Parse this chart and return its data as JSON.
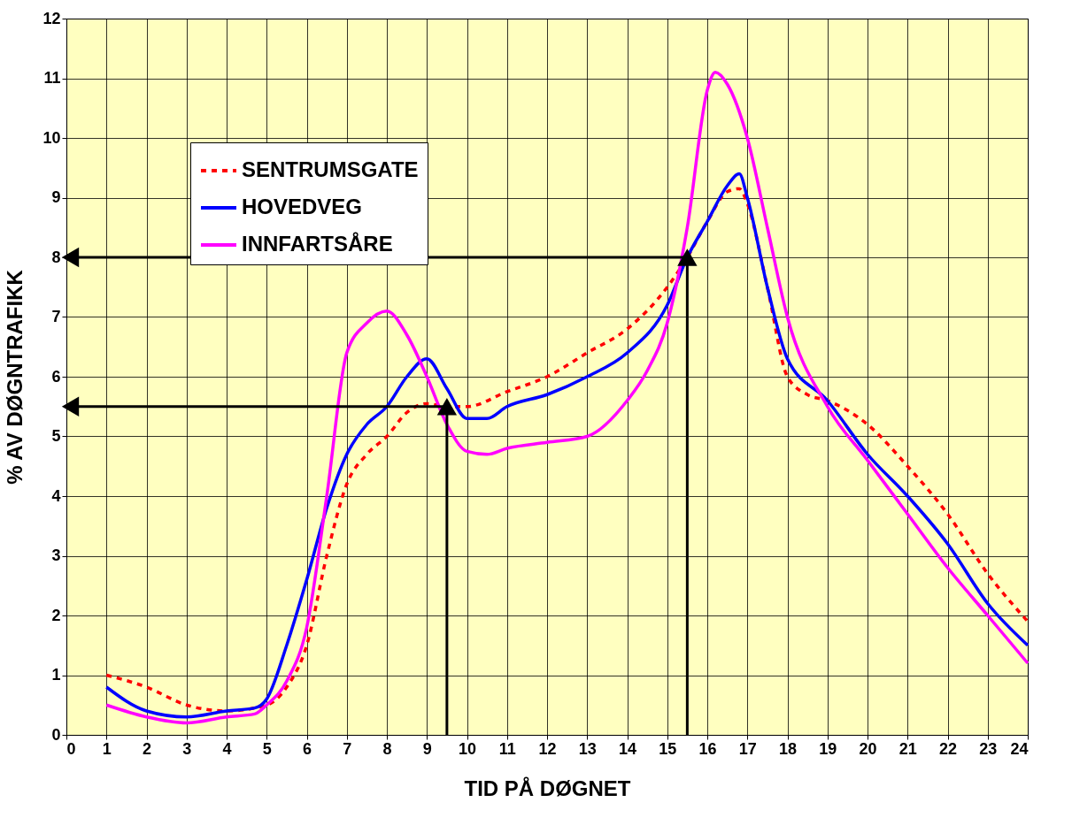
{
  "chart_data": {
    "type": "line",
    "xlabel": "TID PÅ DØGNET",
    "ylabel": "% AV DØGNTRAFIKK",
    "xlim": [
      0,
      24
    ],
    "ylim": [
      0,
      12
    ],
    "xticks": [
      0,
      1,
      2,
      3,
      4,
      5,
      6,
      7,
      8,
      9,
      10,
      11,
      12,
      13,
      14,
      15,
      16,
      17,
      18,
      19,
      20,
      21,
      22,
      23,
      24
    ],
    "yticks": [
      0,
      1,
      2,
      3,
      4,
      5,
      6,
      7,
      8,
      9,
      10,
      11,
      12
    ],
    "grid": true,
    "legend": "top left",
    "marker": "none",
    "series": [
      {
        "name": "SENTRUMSGATE",
        "color": "#ff0000",
        "line_style": "dashed",
        "x": [
          1,
          2,
          3,
          4,
          5,
          5.5,
          6,
          6.5,
          7,
          7.5,
          8,
          8.5,
          9,
          9.5,
          10,
          11,
          12,
          13,
          14,
          15,
          15.5,
          16,
          16.5,
          16.8,
          17,
          17.5,
          18,
          18.5,
          19,
          20,
          21,
          22,
          23,
          24
        ],
        "values": [
          1.0,
          0.8,
          0.5,
          0.4,
          0.5,
          0.8,
          1.5,
          3.0,
          4.2,
          4.7,
          5.0,
          5.4,
          5.55,
          5.5,
          5.5,
          5.75,
          6.0,
          6.4,
          6.8,
          7.5,
          8.0,
          8.6,
          9.1,
          9.15,
          8.9,
          7.5,
          6.0,
          5.7,
          5.6,
          5.2,
          4.5,
          3.7,
          2.7,
          1.9
        ]
      },
      {
        "name": "HOVEDVEG",
        "color": "#0000ff",
        "line_style": "solid",
        "x": [
          1,
          2,
          3,
          4,
          4.7,
          5,
          5.5,
          6,
          6.5,
          7,
          7.5,
          8,
          8.5,
          9,
          9.5,
          10,
          10.5,
          11,
          12,
          13,
          14,
          15,
          15.5,
          16,
          16.5,
          16.8,
          17,
          17.5,
          18,
          19,
          20,
          21,
          22,
          23,
          24
        ],
        "values": [
          0.8,
          0.4,
          0.3,
          0.4,
          0.45,
          0.6,
          1.5,
          2.6,
          3.8,
          4.7,
          5.2,
          5.5,
          6.0,
          6.3,
          5.8,
          5.3,
          5.3,
          5.5,
          5.7,
          6.0,
          6.4,
          7.2,
          8.0,
          8.6,
          9.2,
          9.4,
          9.0,
          7.5,
          6.3,
          5.6,
          4.7,
          4.0,
          3.2,
          2.2,
          1.5
        ]
      },
      {
        "name": "INNFARTSÅRE",
        "color": "#ff00ff",
        "line_style": "solid",
        "x": [
          1,
          2,
          3,
          4,
          4.7,
          5,
          5.5,
          6,
          6.5,
          7,
          7.5,
          8,
          8.5,
          9,
          9.5,
          10,
          10.5,
          11,
          12,
          13,
          14,
          14.5,
          15,
          15.5,
          16,
          16.2,
          16.5,
          17,
          17.5,
          18,
          19,
          20,
          21,
          22,
          23,
          24
        ],
        "values": [
          0.5,
          0.3,
          0.2,
          0.3,
          0.35,
          0.5,
          0.9,
          1.8,
          4.0,
          6.4,
          6.9,
          7.1,
          6.7,
          6.0,
          5.2,
          4.75,
          4.7,
          4.8,
          4.9,
          5.0,
          5.6,
          6.1,
          6.9,
          8.5,
          10.8,
          11.1,
          10.9,
          10.0,
          8.5,
          7.0,
          5.5,
          4.6,
          3.7,
          2.8,
          2.0,
          1.2
        ]
      },
      {
        "color": "#000000",
        "line_style": "solid",
        "marker": "triangle",
        "x": [
          9.5,
          9.5
        ],
        "values": [
          0,
          5.5
        ]
      },
      {
        "color": "#000000",
        "line_style": "solid",
        "marker": "triangle",
        "x": [
          9.5,
          0.1
        ],
        "values": [
          5.5,
          5.5
        ]
      },
      {
        "color": "#000000",
        "line_style": "solid",
        "marker": "triangle",
        "x": [
          15.5,
          15.5
        ],
        "values": [
          0,
          8
        ]
      },
      {
        "color": "#000000",
        "line_style": "solid",
        "marker": "triangle",
        "x": [
          15.5,
          0.1
        ],
        "values": [
          8,
          8
        ]
      }
    ]
  }
}
